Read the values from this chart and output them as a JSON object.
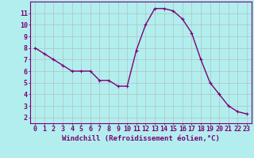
{
  "x": [
    0,
    1,
    2,
    3,
    4,
    5,
    6,
    7,
    8,
    9,
    10,
    11,
    12,
    13,
    14,
    15,
    16,
    17,
    18,
    19,
    20,
    21,
    22,
    23
  ],
  "y": [
    8.0,
    7.5,
    7.0,
    6.5,
    6.0,
    6.0,
    6.0,
    5.2,
    5.2,
    4.7,
    4.7,
    7.8,
    10.0,
    11.4,
    11.4,
    11.2,
    10.5,
    9.3,
    7.0,
    5.0,
    4.0,
    3.0,
    2.5,
    2.3
  ],
  "line_color": "#7b0078",
  "marker": "+",
  "marker_color": "#7b0078",
  "bg_color": "#b2eeee",
  "grid_color": "#b0c8c8",
  "border_color": "#7b0078",
  "xlabel": "Windchill (Refroidissement éolien,°C)",
  "xlim": [
    -0.5,
    23.5
  ],
  "ylim": [
    1.5,
    12.0
  ],
  "yticks": [
    2,
    3,
    4,
    5,
    6,
    7,
    8,
    9,
    10,
    11
  ],
  "xticks": [
    0,
    1,
    2,
    3,
    4,
    5,
    6,
    7,
    8,
    9,
    10,
    11,
    12,
    13,
    14,
    15,
    16,
    17,
    18,
    19,
    20,
    21,
    22,
    23
  ],
  "xlabel_fontsize": 6.5,
  "tick_fontsize": 6,
  "linewidth": 1.0,
  "markersize": 3
}
